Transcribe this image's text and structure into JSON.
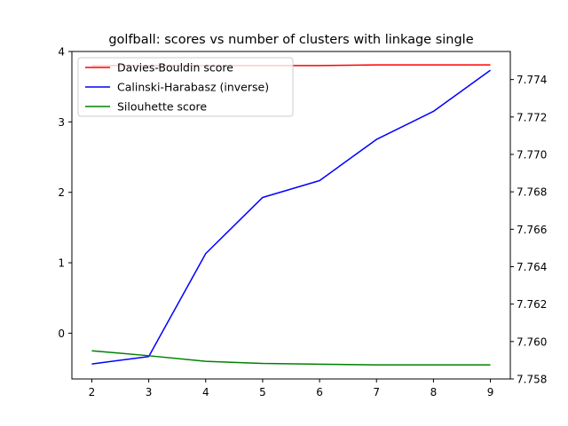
{
  "chart_data": {
    "type": "line",
    "title": "golfball: scores vs number of clusters with linkage single",
    "x": [
      2,
      3,
      4,
      5,
      6,
      7,
      8,
      9
    ],
    "x_ticks": [
      "2",
      "3",
      "4",
      "5",
      "6",
      "7",
      "8",
      "9"
    ],
    "xlim": [
      1.65,
      9.35
    ],
    "left_axis": {
      "ylim": [
        -0.65,
        4.0
      ],
      "ticks": [
        0,
        1,
        2,
        3,
        4
      ],
      "tick_labels": [
        "0",
        "1",
        "2",
        "3",
        "4"
      ]
    },
    "right_axis": {
      "ylim": [
        7.758,
        7.7755
      ],
      "ticks": [
        7.758,
        7.76,
        7.762,
        7.764,
        7.766,
        7.768,
        7.77,
        7.772,
        7.774
      ],
      "tick_labels": [
        "7.758",
        "7.760",
        "7.762",
        "7.764",
        "7.766",
        "7.768",
        "7.770",
        "7.772",
        "7.774"
      ]
    },
    "series": [
      {
        "name": "Davies-Bouldin score",
        "color": "#ff0000",
        "axis": "left",
        "values": [
          3.8,
          3.8,
          3.8,
          3.8,
          3.8,
          3.81,
          3.81,
          3.81
        ]
      },
      {
        "name": "Calinski-Harabasz (inverse)",
        "color": "#0000ff",
        "axis": "right",
        "values": [
          7.7588,
          7.7592,
          7.7647,
          7.7677,
          7.7686,
          7.7708,
          7.7723,
          7.7745
        ]
      },
      {
        "name": "Silouhette score",
        "color": "#008000",
        "axis": "left",
        "values": [
          -0.25,
          -0.32,
          -0.4,
          -0.43,
          -0.44,
          -0.45,
          -0.45,
          -0.45
        ]
      }
    ],
    "legend_position": "top-left",
    "grid": false
  }
}
